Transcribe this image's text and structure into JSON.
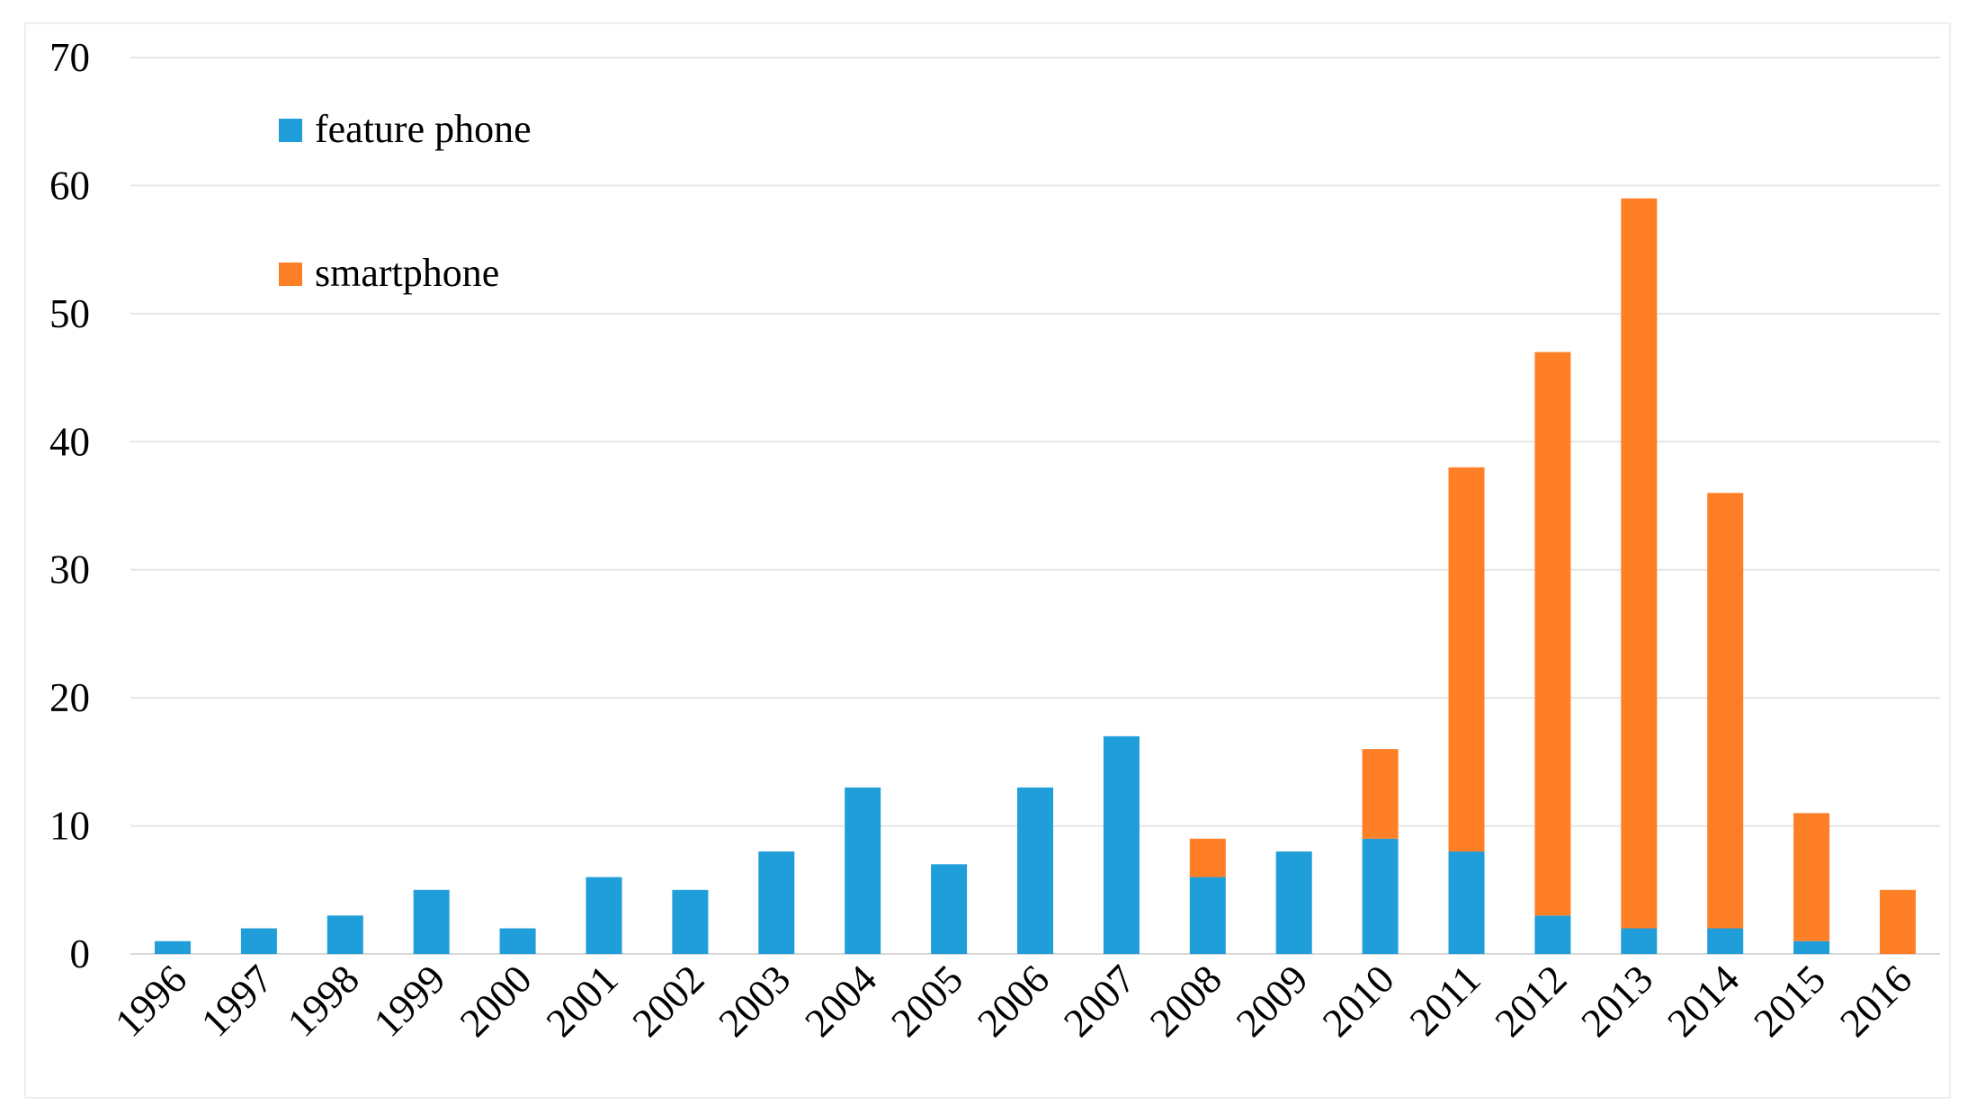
{
  "chart_data": {
    "type": "bar",
    "stacked": true,
    "title": "",
    "xlabel": "",
    "ylabel": "",
    "categories": [
      "1996",
      "1997",
      "1998",
      "1999",
      "2000",
      "2001",
      "2002",
      "2003",
      "2004",
      "2005",
      "2006",
      "2007",
      "2008",
      "2009",
      "2010",
      "2011",
      "2012",
      "2013",
      "2014",
      "2015",
      "2016"
    ],
    "series": [
      {
        "name": "feature phone",
        "color": "#1f9ed9",
        "values": [
          1,
          2,
          3,
          5,
          2,
          6,
          5,
          8,
          13,
          7,
          13,
          17,
          6,
          8,
          9,
          8,
          3,
          2,
          2,
          1,
          0
        ]
      },
      {
        "name": "smartphone",
        "color": "#ff7f27",
        "values": [
          0,
          0,
          0,
          0,
          0,
          0,
          0,
          0,
          0,
          0,
          0,
          0,
          3,
          0,
          7,
          30,
          44,
          57,
          34,
          10,
          5
        ]
      }
    ],
    "ylim": [
      0,
      70
    ],
    "yticks": [
      "0",
      "10",
      "20",
      "30",
      "40",
      "50",
      "60",
      "70"
    ],
    "grid": true,
    "legend_position": "top-left"
  }
}
